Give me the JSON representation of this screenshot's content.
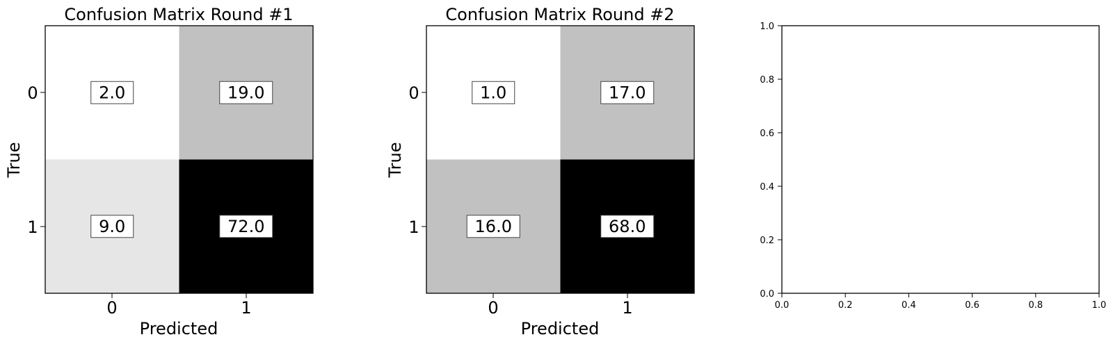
{
  "colors": {
    "background": "#ffffff",
    "axis": "#000000",
    "label_box_fill": "#ffffff",
    "label_box_stroke": "#444444",
    "colormap": "gray_r"
  },
  "chart_data": [
    {
      "type": "heatmap",
      "title": "Confusion Matrix Round #1",
      "xlabel": "Predicted",
      "ylabel": "True",
      "x_categories": [
        "0",
        "1"
      ],
      "y_categories": [
        "0",
        "1"
      ],
      "values": [
        [
          2.0,
          19.0
        ],
        [
          9.0,
          72.0
        ]
      ],
      "labels": [
        [
          "2.0",
          "19.0"
        ],
        [
          "9.0",
          "72.0"
        ]
      ],
      "shades": [
        [
          1.0,
          0.757
        ],
        [
          0.902,
          0.0
        ]
      ]
    },
    {
      "type": "heatmap",
      "title": "Confusion Matrix Round #2",
      "xlabel": "Predicted",
      "ylabel": "True",
      "x_categories": [
        "0",
        "1"
      ],
      "y_categories": [
        "0",
        "1"
      ],
      "values": [
        [
          1.0,
          17.0
        ],
        [
          16.0,
          68.0
        ]
      ],
      "labels": [
        [
          "1.0",
          "17.0"
        ],
        [
          "16.0",
          "68.0"
        ]
      ],
      "shades": [
        [
          1.0,
          0.757
        ],
        [
          0.757,
          0.0
        ]
      ]
    },
    {
      "type": "line",
      "title": "",
      "xlabel": "",
      "ylabel": "",
      "xlim": [
        0.0,
        1.0
      ],
      "ylim": [
        0.0,
        1.0
      ],
      "x_ticks": [
        "0.0",
        "0.2",
        "0.4",
        "0.6",
        "0.8",
        "1.0"
      ],
      "y_ticks": [
        "0.0",
        "0.2",
        "0.4",
        "0.6",
        "0.8",
        "1.0"
      ],
      "series": []
    }
  ]
}
